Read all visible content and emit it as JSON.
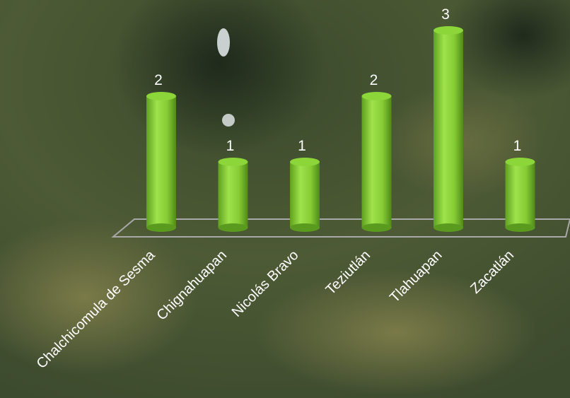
{
  "chart_data": {
    "type": "bar",
    "categories": [
      "Chalchicomula de Sesma",
      "Chignahuapan",
      "Nicolás Bravo",
      "Teziutlán",
      "Tlahuapan",
      "Zacatlán"
    ],
    "values": [
      2,
      1,
      1,
      2,
      3,
      1
    ],
    "color": "#8cd63a"
  }
}
